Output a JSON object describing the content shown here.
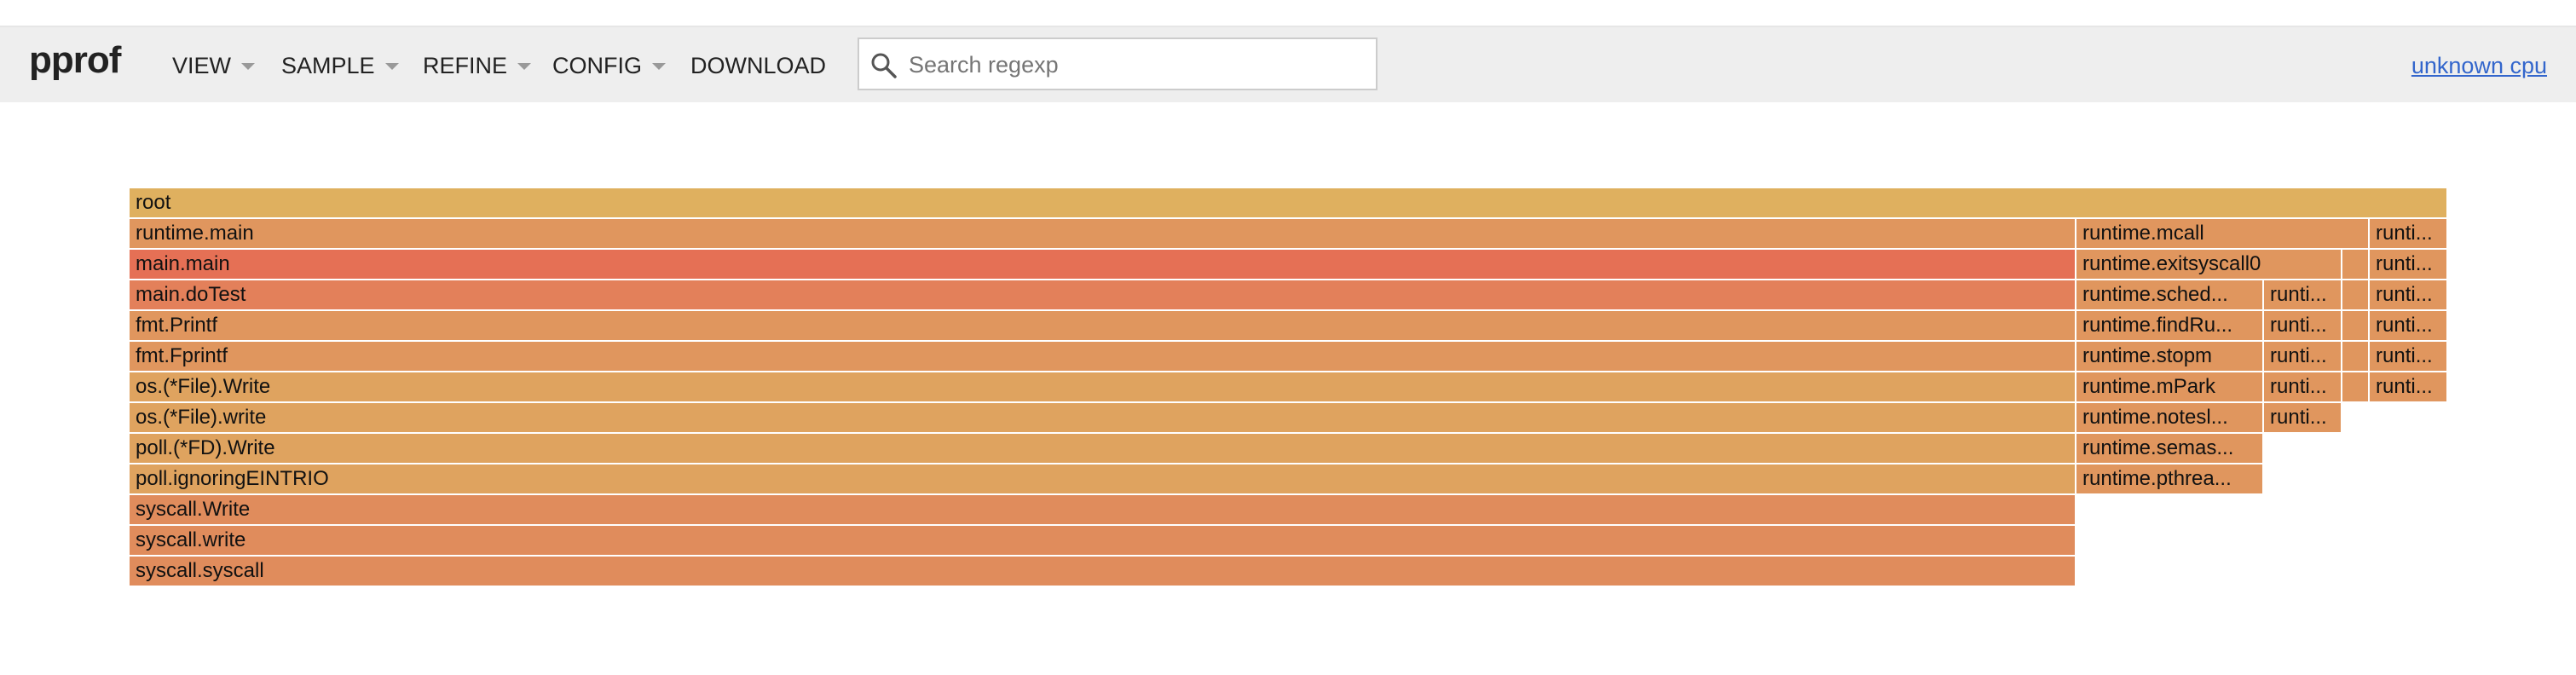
{
  "browser_strip": {},
  "header": {
    "logo": "pprof",
    "menus": [
      {
        "label": "VIEW",
        "has_caret": true
      },
      {
        "label": "SAMPLE",
        "has_caret": true
      },
      {
        "label": "REFINE",
        "has_caret": true
      },
      {
        "label": "CONFIG",
        "has_caret": true
      },
      {
        "label": "DOWNLOAD",
        "has_caret": false
      }
    ],
    "search": {
      "placeholder": "Search regexp",
      "value": "",
      "icon": "search-icon"
    },
    "cpu_link": "unknown cpu"
  },
  "colors": {
    "header_bg": "#eeeeee",
    "link": "#3366cc",
    "frame_yellow": "#dfb05f",
    "frame_orange": "#e08c5c",
    "frame_red": "#e57055"
  },
  "flamegraph": {
    "frames": [
      {
        "label": "root",
        "color": "#dfb05f"
      },
      {
        "label": "runtime.main",
        "color": "#e0965e"
      },
      {
        "label": "runtime.mcall",
        "color": "#e0965e"
      },
      {
        "label": "runti...",
        "color": "#e0965e"
      },
      {
        "label": "main.main",
        "color": "#e57055"
      },
      {
        "label": "runtime.exitsyscall0",
        "color": "#e0965e"
      },
      {
        "label": "",
        "color": "#e0965e"
      },
      {
        "label": "runti...",
        "color": "#e0965e"
      },
      {
        "label": "main.doTest",
        "color": "#e3805a"
      },
      {
        "label": "runtime.sched...",
        "color": "#e0965e"
      },
      {
        "label": "runti...",
        "color": "#e0965e"
      },
      {
        "label": "",
        "color": "#e0965e"
      },
      {
        "label": "runti...",
        "color": "#e0965e"
      },
      {
        "label": "fmt.Printf",
        "color": "#e0965e"
      },
      {
        "label": "runtime.findRu...",
        "color": "#e0965e"
      },
      {
        "label": "runti...",
        "color": "#e0965e"
      },
      {
        "label": "",
        "color": "#e0965e"
      },
      {
        "label": "runti...",
        "color": "#e0965e"
      },
      {
        "label": "fmt.Fprintf",
        "color": "#e0965e"
      },
      {
        "label": "runtime.stopm",
        "color": "#e0965e"
      },
      {
        "label": "runti...",
        "color": "#e0965e"
      },
      {
        "label": "",
        "color": "#e0965e"
      },
      {
        "label": "runti...",
        "color": "#e0965e"
      },
      {
        "label": "os.(*File).Write",
        "color": "#dfa35f"
      },
      {
        "label": "runtime.mPark",
        "color": "#e0965e"
      },
      {
        "label": "runti...",
        "color": "#e0965e"
      },
      {
        "label": "",
        "color": "#e0965e"
      },
      {
        "label": "runti...",
        "color": "#e0965e"
      },
      {
        "label": "os.(*File).write",
        "color": "#dfa35f"
      },
      {
        "label": "runtime.notesl...",
        "color": "#e0965e"
      },
      {
        "label": "runti...",
        "color": "#e0965e"
      },
      {
        "label": "poll.(*FD).Write",
        "color": "#dfa35f"
      },
      {
        "label": "runtime.semas...",
        "color": "#e0965e"
      },
      {
        "label": "poll.ignoringEINTRIO",
        "color": "#dfa35f"
      },
      {
        "label": "runtime.pthrea...",
        "color": "#e0965e"
      },
      {
        "label": "syscall.Write",
        "color": "#e08c5c"
      },
      {
        "label": "syscall.write",
        "color": "#e08c5c"
      },
      {
        "label": "syscall.syscall",
        "color": "#e08c5c"
      }
    ]
  }
}
